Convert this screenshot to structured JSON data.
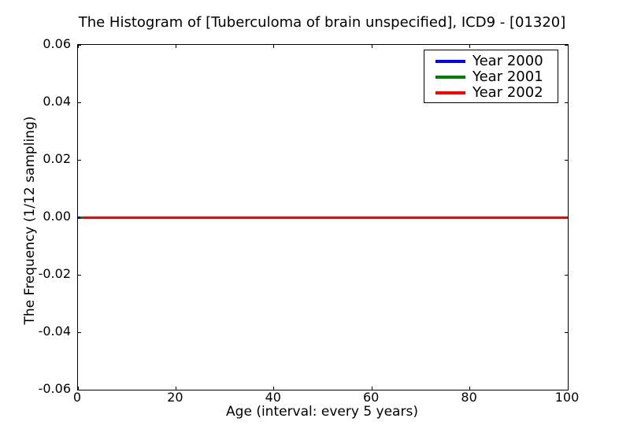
{
  "figure": {
    "background": "#ffffff",
    "axes_color": "#000000"
  },
  "chart_data": {
    "type": "line",
    "title": "The Histogram of [Tuberculoma of brain unspecified], ICD9 - [01320]",
    "xlabel": "Age (interval: every 5 years)",
    "ylabel": "The Frequency (1/12 sampling)",
    "xlim": [
      0,
      100
    ],
    "ylim": [
      -0.06,
      0.06
    ],
    "grid": false,
    "legend_position": "upper right",
    "xticks": [
      {
        "v": 0,
        "label": "0"
      },
      {
        "v": 20,
        "label": "20"
      },
      {
        "v": 40,
        "label": "40"
      },
      {
        "v": 60,
        "label": "60"
      },
      {
        "v": 80,
        "label": "80"
      },
      {
        "v": 100,
        "label": "100"
      }
    ],
    "yticks": [
      {
        "v": 0.06,
        "label": "0.06"
      },
      {
        "v": 0.04,
        "label": "0.04"
      },
      {
        "v": 0.02,
        "label": "0.02"
      },
      {
        "v": 0.0,
        "label": "0.00"
      },
      {
        "v": -0.02,
        "label": "-0.02"
      },
      {
        "v": -0.04,
        "label": "-0.04"
      },
      {
        "v": -0.06,
        "label": "-0.06"
      }
    ],
    "series": [
      {
        "name": "Year 2000",
        "color": "#0000ff",
        "x": [
          0,
          100
        ],
        "values": [
          0,
          0
        ]
      },
      {
        "name": "Year 2001",
        "color": "#008000",
        "x": [
          0,
          100
        ],
        "values": [
          0,
          0
        ]
      },
      {
        "name": "Year 2002",
        "color": "#ff0000",
        "x": [
          0,
          100
        ],
        "values": [
          0,
          0
        ]
      }
    ]
  }
}
